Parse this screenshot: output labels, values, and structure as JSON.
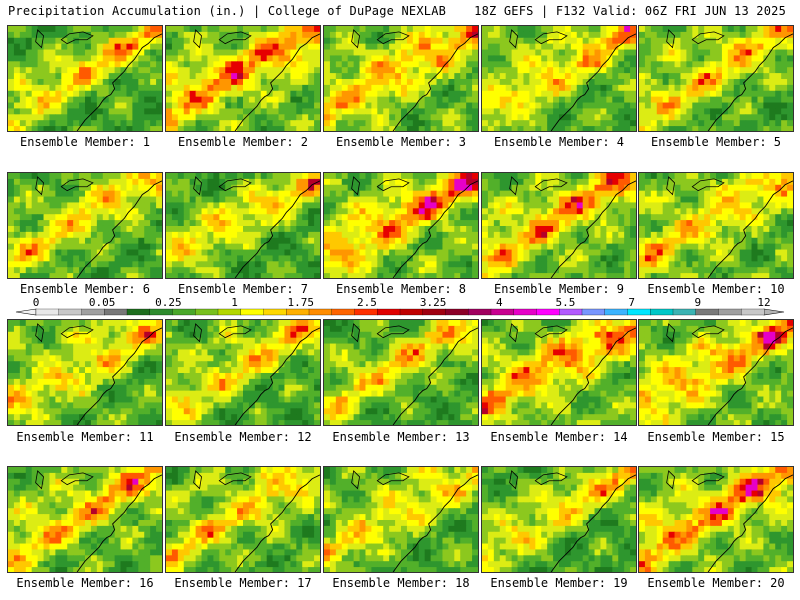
{
  "header": {
    "left_title": "Precipitation Accumulation (in.) | College of DuPage NEXLAB",
    "right_title": "18Z GEFS | F132 Valid: 06Z FRI JUN 13 2025"
  },
  "members": [
    {
      "label": "Ensemble Member: 1"
    },
    {
      "label": "Ensemble Member: 2"
    },
    {
      "label": "Ensemble Member: 3"
    },
    {
      "label": "Ensemble Member: 4"
    },
    {
      "label": "Ensemble Member: 5"
    },
    {
      "label": "Ensemble Member: 6"
    },
    {
      "label": "Ensemble Member: 7"
    },
    {
      "label": "Ensemble Member: 8"
    },
    {
      "label": "Ensemble Member: 9"
    },
    {
      "label": "Ensemble Member: 10"
    },
    {
      "label": "Ensemble Member: 11"
    },
    {
      "label": "Ensemble Member: 12"
    },
    {
      "label": "Ensemble Member: 13"
    },
    {
      "label": "Ensemble Member: 14"
    },
    {
      "label": "Ensemble Member: 15"
    },
    {
      "label": "Ensemble Member: 16"
    },
    {
      "label": "Ensemble Member: 17"
    },
    {
      "label": "Ensemble Member: 18"
    },
    {
      "label": "Ensemble Member: 19"
    },
    {
      "label": "Ensemble Member: 20"
    }
  ],
  "legend": {
    "tick_labels": [
      "0",
      "0.05",
      "0.25",
      "1",
      "1.75",
      "2.5",
      "3.25",
      "4",
      "5.5",
      "7",
      "9",
      "12"
    ],
    "colors": [
      "#e8e8e8",
      "#c8c8c8",
      "#a0a0a0",
      "#787878",
      "#1e6e1e",
      "#2e8b2e",
      "#4aa82a",
      "#78c01e",
      "#b4d800",
      "#ffff00",
      "#ffd800",
      "#ffb000",
      "#ff8c00",
      "#ff6400",
      "#ff3000",
      "#e00000",
      "#c00000",
      "#a00010",
      "#8c0028",
      "#a00060",
      "#c80090",
      "#e600c8",
      "#ff00ff",
      "#b45aff",
      "#7896ff",
      "#3cb4ff",
      "#00e6ff",
      "#00c8c8",
      "#3cb4b4",
      "#7a7a7a",
      "#a0a0a0",
      "#c8c8c8"
    ]
  }
}
